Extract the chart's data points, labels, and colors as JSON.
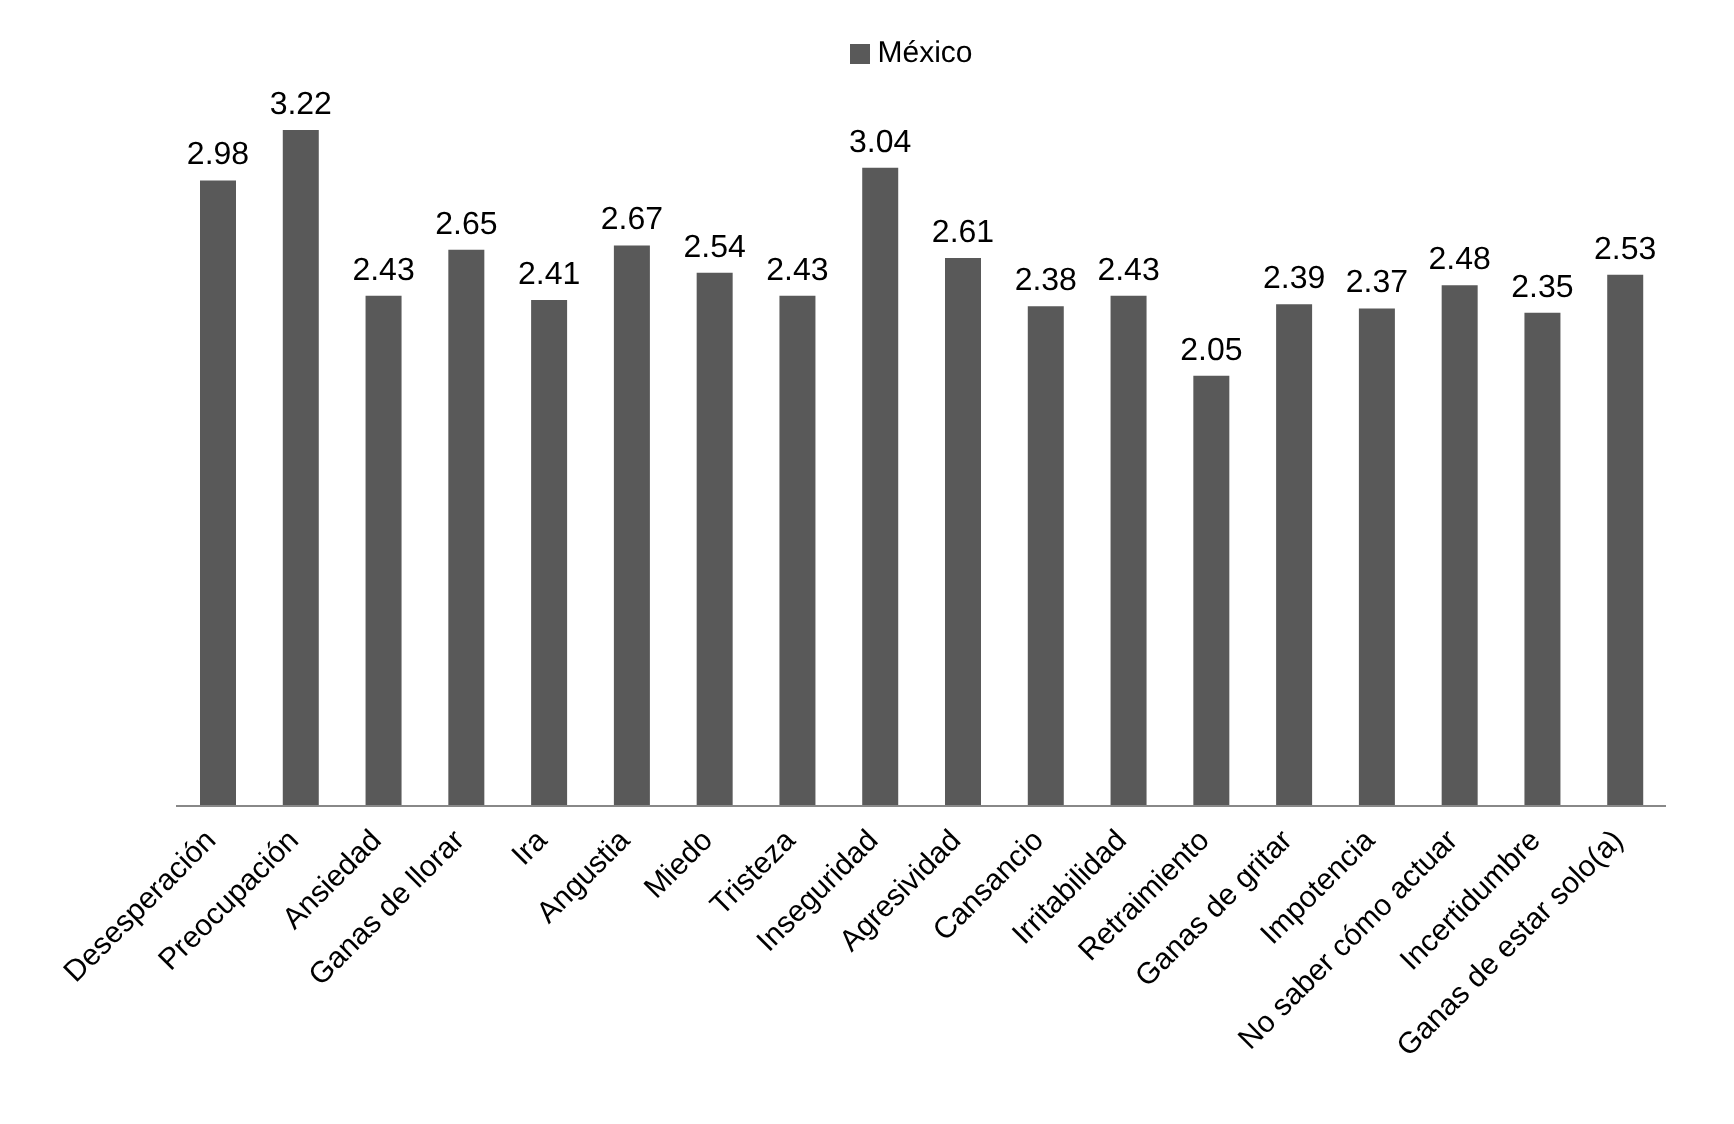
{
  "chart_data": {
    "type": "bar",
    "categories": [
      "Desesperación",
      "Preocupación",
      "Ansiedad",
      "Ganas de llorar",
      "Ira",
      "Angustia",
      "Miedo",
      "Tristeza",
      "Inseguridad",
      "Agresividad",
      "Cansancio",
      "Irritabilidad",
      "Retraimiento",
      "Ganas de gritar",
      "Impotencia",
      "No saber cómo actuar",
      "Incertidumbre",
      "Ganas de estar solo(a)"
    ],
    "series": [
      {
        "name": "México",
        "color": "#595959",
        "values": [
          2.98,
          3.22,
          2.43,
          2.65,
          2.41,
          2.67,
          2.54,
          2.43,
          3.04,
          2.61,
          2.38,
          2.43,
          2.05,
          2.39,
          2.37,
          2.48,
          2.35,
          2.53
        ]
      }
    ],
    "data_labels": true,
    "legend": "top"
  }
}
